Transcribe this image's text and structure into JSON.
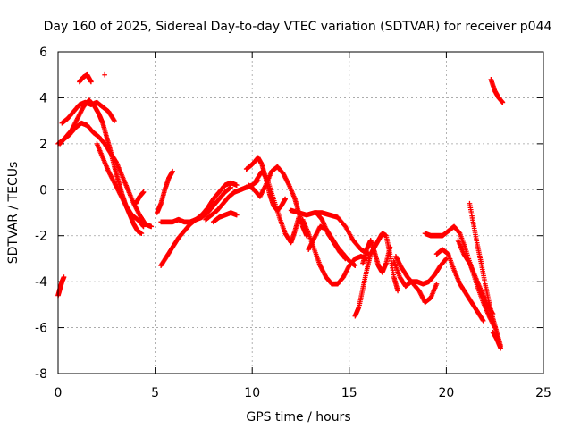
{
  "chart_data": {
    "type": "scatter",
    "title": "Day 160 of 2025, Sidereal Day-to-day VTEC variation (SDTVAR) for receiver p044",
    "xlabel": "GPS time / hours",
    "ylabel": "SDTVAR / TECUs",
    "xlim": [
      0,
      25
    ],
    "ylim": [
      -8,
      6
    ],
    "xticks": [
      0,
      5,
      10,
      15,
      20,
      25
    ],
    "yticks": [
      -8,
      -6,
      -4,
      -2,
      0,
      2,
      4,
      6
    ],
    "xtick_labels": [
      "0",
      "5",
      "10",
      "15",
      "20",
      "25"
    ],
    "ytick_labels": [
      "-8",
      "-6",
      "-4",
      "-2",
      "0",
      "2",
      "4",
      "6"
    ],
    "grid": true,
    "marker": "+",
    "series": [
      {
        "name": "p044 SDTVAR",
        "color": "#ff0000",
        "tracks": [
          [
            [
              0.0,
              2.0
            ],
            [
              0.3,
              2.2
            ],
            [
              0.6,
              2.4
            ],
            [
              0.9,
              2.7
            ],
            [
              1.2,
              2.9
            ],
            [
              1.5,
              2.8
            ],
            [
              1.8,
              2.5
            ],
            [
              2.1,
              2.3
            ],
            [
              2.4,
              2.0
            ],
            [
              2.7,
              1.6
            ],
            [
              3.0,
              1.2
            ],
            [
              3.3,
              0.6
            ],
            [
              3.6,
              0.0
            ],
            [
              3.9,
              -0.6
            ],
            [
              4.2,
              -1.1
            ],
            [
              4.5,
              -1.5
            ],
            [
              4.8,
              -1.6
            ]
          ],
          [
            [
              0.2,
              2.9
            ],
            [
              0.5,
              3.1
            ],
            [
              0.8,
              3.4
            ],
            [
              1.1,
              3.7
            ],
            [
              1.4,
              3.8
            ],
            [
              1.7,
              3.7
            ],
            [
              2.0,
              3.8
            ],
            [
              2.3,
              3.6
            ],
            [
              2.6,
              3.4
            ],
            [
              2.9,
              3.0
            ]
          ],
          [
            [
              0.1,
              2.0
            ],
            [
              0.4,
              2.3
            ],
            [
              0.7,
              2.6
            ],
            [
              1.0,
              3.1
            ],
            [
              1.3,
              3.6
            ],
            [
              1.6,
              3.9
            ],
            [
              1.9,
              3.6
            ],
            [
              2.1,
              3.3
            ],
            [
              2.3,
              2.9
            ],
            [
              2.5,
              2.3
            ],
            [
              2.7,
              1.7
            ],
            [
              2.9,
              1.0
            ],
            [
              3.1,
              0.4
            ],
            [
              3.3,
              -0.2
            ],
            [
              3.5,
              -0.7
            ],
            [
              3.7,
              -1.1
            ],
            [
              3.9,
              -1.5
            ],
            [
              4.1,
              -1.8
            ],
            [
              4.3,
              -1.9
            ]
          ],
          [
            [
              1.1,
              4.7
            ],
            [
              1.3,
              4.9
            ],
            [
              1.5,
              5.0
            ],
            [
              1.7,
              4.7
            ]
          ],
          [
            [
              2.4,
              5.0
            ]
          ],
          [
            [
              0.0,
              -4.6
            ],
            [
              0.1,
              -4.3
            ],
            [
              0.2,
              -4.0
            ],
            [
              0.3,
              -3.8
            ]
          ],
          [
            [
              2.0,
              2.0
            ],
            [
              2.3,
              1.4
            ],
            [
              2.6,
              0.8
            ],
            [
              2.9,
              0.3
            ],
            [
              3.2,
              -0.2
            ],
            [
              3.5,
              -0.7
            ],
            [
              3.8,
              -1.1
            ],
            [
              4.1,
              -1.3
            ],
            [
              4.4,
              -1.6
            ]
          ],
          [
            [
              4.0,
              -0.6
            ],
            [
              4.2,
              -0.3
            ],
            [
              4.4,
              -0.1
            ]
          ],
          [
            [
              5.1,
              -1.0
            ],
            [
              5.3,
              -0.6
            ],
            [
              5.5,
              0.0
            ],
            [
              5.7,
              0.5
            ],
            [
              5.9,
              0.8
            ]
          ],
          [
            [
              5.3,
              -1.4
            ],
            [
              5.6,
              -1.4
            ],
            [
              5.9,
              -1.4
            ],
            [
              6.2,
              -1.3
            ],
            [
              6.5,
              -1.4
            ],
            [
              6.8,
              -1.4
            ],
            [
              7.1,
              -1.3
            ],
            [
              7.4,
              -1.2
            ],
            [
              7.7,
              -1.0
            ],
            [
              8.0,
              -0.7
            ],
            [
              8.3,
              -0.4
            ],
            [
              8.6,
              -0.1
            ],
            [
              8.9,
              0.1
            ]
          ],
          [
            [
              5.3,
              -3.3
            ],
            [
              5.6,
              -2.9
            ],
            [
              5.9,
              -2.5
            ],
            [
              6.2,
              -2.1
            ],
            [
              6.5,
              -1.8
            ],
            [
              6.8,
              -1.5
            ],
            [
              7.1,
              -1.3
            ],
            [
              7.4,
              -1.1
            ],
            [
              7.7,
              -0.8
            ],
            [
              8.0,
              -0.4
            ],
            [
              8.3,
              -0.1
            ],
            [
              8.6,
              0.2
            ],
            [
              8.9,
              0.3
            ],
            [
              9.2,
              0.2
            ]
          ],
          [
            [
              7.6,
              -1.3
            ],
            [
              7.9,
              -1.1
            ],
            [
              8.2,
              -0.9
            ],
            [
              8.5,
              -0.6
            ],
            [
              8.8,
              -0.3
            ],
            [
              9.1,
              -0.1
            ],
            [
              9.4,
              0.0
            ],
            [
              9.7,
              0.1
            ],
            [
              10.0,
              0.2
            ],
            [
              10.3,
              0.4
            ]
          ],
          [
            [
              8.0,
              -1.4
            ],
            [
              8.3,
              -1.2
            ],
            [
              8.6,
              -1.1
            ],
            [
              8.9,
              -1.0
            ],
            [
              9.2,
              -1.1
            ]
          ],
          [
            [
              9.7,
              0.9
            ],
            [
              10.0,
              1.1
            ],
            [
              10.3,
              1.4
            ],
            [
              10.5,
              1.1
            ],
            [
              10.7,
              0.5
            ],
            [
              10.9,
              -0.2
            ],
            [
              11.1,
              -0.7
            ],
            [
              11.3,
              -0.9
            ],
            [
              11.5,
              -0.7
            ],
            [
              11.7,
              -0.4
            ]
          ],
          [
            [
              9.8,
              0.2
            ],
            [
              10.1,
              0.0
            ],
            [
              10.4,
              -0.3
            ],
            [
              10.7,
              0.2
            ],
            [
              11.0,
              0.8
            ],
            [
              11.3,
              1.0
            ],
            [
              11.6,
              0.7
            ],
            [
              11.9,
              0.2
            ],
            [
              12.2,
              -0.4
            ],
            [
              12.4,
              -1.0
            ],
            [
              12.6,
              -1.6
            ],
            [
              12.8,
              -2.0
            ]
          ],
          [
            [
              10.2,
              0.4
            ],
            [
              10.5,
              0.8
            ],
            [
              10.8,
              0.4
            ],
            [
              11.1,
              -0.4
            ],
            [
              11.4,
              -1.2
            ],
            [
              11.7,
              -1.9
            ],
            [
              12.0,
              -2.3
            ],
            [
              12.2,
              -1.8
            ],
            [
              12.4,
              -1.2
            ]
          ],
          [
            [
              12.0,
              -0.9
            ],
            [
              12.4,
              -1.0
            ],
            [
              12.8,
              -1.1
            ],
            [
              13.2,
              -1.0
            ],
            [
              13.6,
              -1.0
            ],
            [
              14.0,
              -1.1
            ],
            [
              14.4,
              -1.2
            ],
            [
              14.8,
              -1.6
            ],
            [
              15.2,
              -2.2
            ],
            [
              15.6,
              -2.6
            ],
            [
              16.0,
              -2.8
            ]
          ],
          [
            [
              12.6,
              -1.3
            ],
            [
              12.9,
              -1.9
            ],
            [
              13.2,
              -2.6
            ],
            [
              13.5,
              -3.3
            ],
            [
              13.8,
              -3.8
            ],
            [
              14.1,
              -4.1
            ],
            [
              14.4,
              -4.1
            ],
            [
              14.7,
              -3.8
            ],
            [
              15.0,
              -3.3
            ],
            [
              15.3,
              -3.0
            ],
            [
              15.6,
              -2.9
            ],
            [
              15.9,
              -3.0
            ]
          ],
          [
            [
              12.9,
              -2.6
            ],
            [
              13.2,
              -2.1
            ],
            [
              13.5,
              -1.6
            ],
            [
              13.8,
              -1.7
            ],
            [
              14.1,
              -2.1
            ],
            [
              14.4,
              -2.5
            ],
            [
              14.7,
              -2.8
            ],
            [
              15.0,
              -3.1
            ],
            [
              15.3,
              -3.3
            ]
          ],
          [
            [
              13.3,
              -1.0
            ],
            [
              13.6,
              -1.3
            ],
            [
              13.9,
              -1.9
            ],
            [
              14.2,
              -2.3
            ],
            [
              14.5,
              -2.7
            ],
            [
              14.8,
              -3.0
            ]
          ],
          [
            [
              15.3,
              -5.5
            ],
            [
              15.5,
              -5.1
            ],
            [
              15.7,
              -4.3
            ],
            [
              15.9,
              -3.5
            ],
            [
              16.1,
              -2.8
            ],
            [
              16.3,
              -2.5
            ],
            [
              16.5,
              -2.2
            ],
            [
              16.7,
              -1.9
            ],
            [
              16.9,
              -2.0
            ],
            [
              17.1,
              -2.8
            ],
            [
              17.3,
              -3.8
            ],
            [
              17.5,
              -4.4
            ]
          ],
          [
            [
              15.7,
              -3.2
            ],
            [
              15.9,
              -2.6
            ],
            [
              16.1,
              -2.2
            ],
            [
              16.3,
              -2.7
            ],
            [
              16.5,
              -3.3
            ],
            [
              16.7,
              -3.6
            ],
            [
              16.9,
              -3.2
            ],
            [
              17.1,
              -2.5
            ]
          ],
          [
            [
              17.3,
              -3.1
            ],
            [
              17.6,
              -3.8
            ],
            [
              17.9,
              -4.2
            ],
            [
              18.2,
              -4.0
            ],
            [
              18.5,
              -4.0
            ],
            [
              18.8,
              -4.1
            ],
            [
              19.1,
              -4.0
            ],
            [
              19.4,
              -3.7
            ],
            [
              19.7,
              -3.3
            ],
            [
              20.0,
              -3.0
            ]
          ],
          [
            [
              17.4,
              -2.9
            ],
            [
              17.7,
              -3.4
            ],
            [
              18.0,
              -3.8
            ],
            [
              18.3,
              -4.1
            ],
            [
              18.6,
              -4.4
            ],
            [
              18.9,
              -4.9
            ],
            [
              19.2,
              -4.7
            ],
            [
              19.5,
              -4.1
            ]
          ],
          [
            [
              18.9,
              -1.9
            ],
            [
              19.2,
              -2.0
            ],
            [
              19.5,
              -2.0
            ],
            [
              19.8,
              -2.0
            ],
            [
              20.1,
              -1.8
            ],
            [
              20.4,
              -1.6
            ],
            [
              20.7,
              -1.9
            ],
            [
              21.0,
              -2.6
            ],
            [
              21.3,
              -3.4
            ],
            [
              21.6,
              -4.2
            ],
            [
              21.9,
              -4.9
            ],
            [
              22.2,
              -5.5
            ],
            [
              22.5,
              -6.0
            ]
          ],
          [
            [
              19.5,
              -2.8
            ],
            [
              19.8,
              -2.6
            ],
            [
              20.1,
              -2.8
            ],
            [
              20.4,
              -3.5
            ],
            [
              20.7,
              -4.1
            ],
            [
              21.0,
              -4.5
            ],
            [
              21.3,
              -4.9
            ],
            [
              21.6,
              -5.3
            ],
            [
              21.9,
              -5.7
            ]
          ],
          [
            [
              20.6,
              -2.2
            ],
            [
              20.9,
              -2.8
            ],
            [
              21.2,
              -3.2
            ],
            [
              21.5,
              -3.8
            ],
            [
              21.8,
              -4.4
            ],
            [
              22.1,
              -5.0
            ],
            [
              22.4,
              -5.4
            ]
          ],
          [
            [
              21.2,
              -0.6
            ],
            [
              21.4,
              -1.5
            ],
            [
              21.6,
              -2.4
            ],
            [
              21.8,
              -3.2
            ],
            [
              22.0,
              -4.1
            ],
            [
              22.2,
              -4.9
            ],
            [
              22.4,
              -5.6
            ],
            [
              22.6,
              -6.2
            ],
            [
              22.8,
              -6.8
            ]
          ],
          [
            [
              22.4,
              -6.2
            ],
            [
              22.6,
              -6.5
            ],
            [
              22.8,
              -6.9
            ]
          ],
          [
            [
              22.3,
              4.8
            ],
            [
              22.5,
              4.3
            ],
            [
              22.7,
              4.0
            ],
            [
              22.9,
              3.8
            ]
          ]
        ]
      }
    ]
  }
}
